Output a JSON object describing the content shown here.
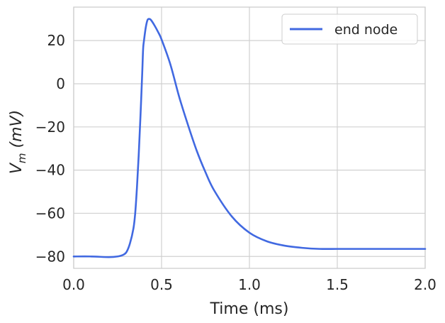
{
  "chart_data": {
    "type": "line",
    "xlabel": "Time (ms)",
    "ylabel": {
      "base": "V",
      "sub": "m",
      "unit": " (mV)"
    },
    "xlim": [
      0,
      2.0
    ],
    "ylim": [
      -85.5,
      35.5
    ],
    "xticks": [
      {
        "value": 0.0,
        "label": "0.0"
      },
      {
        "value": 0.5,
        "label": "0.5"
      },
      {
        "value": 1.0,
        "label": "1.0"
      },
      {
        "value": 1.5,
        "label": "1.5"
      },
      {
        "value": 2.0,
        "label": "2.0"
      }
    ],
    "yticks": [
      {
        "value": 20,
        "label": "20"
      },
      {
        "value": 0,
        "label": "0"
      },
      {
        "value": -20,
        "label": "−20"
      },
      {
        "value": -40,
        "label": "−40"
      },
      {
        "value": -60,
        "label": "−60"
      },
      {
        "value": -80,
        "label": "−80"
      }
    ],
    "grid": true,
    "legend_position": "top-right",
    "colors": {
      "series": "#4169e1",
      "grid": "#d0d0d0",
      "spine": "#cccccc",
      "text": "#262626"
    },
    "series": [
      {
        "name": "end node",
        "x": [
          0.0,
          0.1,
          0.2,
          0.25,
          0.28,
          0.3,
          0.32,
          0.34,
          0.35,
          0.36,
          0.37,
          0.38,
          0.39,
          0.395,
          0.4,
          0.41,
          0.42,
          0.43,
          0.44,
          0.46,
          0.48,
          0.5,
          0.55,
          0.6,
          0.65,
          0.7,
          0.75,
          0.8,
          0.9,
          1.0,
          1.1,
          1.2,
          1.3,
          1.4,
          1.5,
          1.6,
          1.8,
          2.0
        ],
        "y": [
          -80,
          -80,
          -80.3,
          -80,
          -79.3,
          -78,
          -74,
          -67,
          -60,
          -48,
          -33,
          -15,
          5,
          16,
          20,
          26,
          29.5,
          30,
          29.5,
          27,
          24,
          20.5,
          9,
          -6,
          -19,
          -31,
          -41,
          -49.5,
          -61.5,
          -69,
          -73,
          -75,
          -76,
          -76.5,
          -76.5,
          -76.5,
          -76.5,
          -76.5
        ]
      }
    ]
  }
}
